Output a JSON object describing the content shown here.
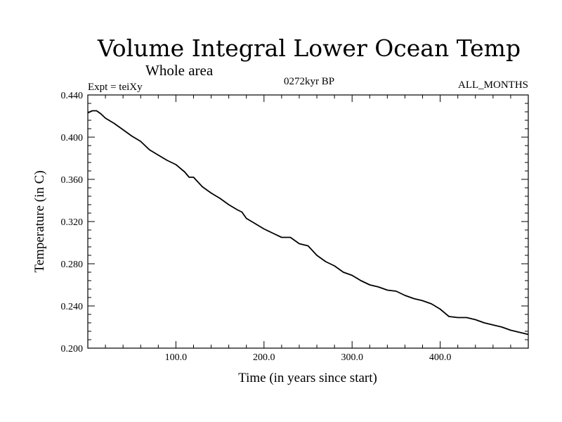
{
  "chart_data": {
    "type": "line",
    "title": "Volume Integral Lower Ocean Temp",
    "subtitle": "Whole area",
    "left_label": "Expt = teiXy",
    "center_label": "0272kyr BP",
    "right_label": "ALL_MONTHS",
    "xlabel": "Time (in years since start)",
    "ylabel": "Temperature (in C)",
    "xlim": [
      0,
      500
    ],
    "ylim": [
      0.2,
      0.44
    ],
    "x_ticks": [
      {
        "value": 100,
        "label": "100.0"
      },
      {
        "value": 200,
        "label": "200.0"
      },
      {
        "value": 300,
        "label": "300.0"
      },
      {
        "value": 400,
        "label": "400.0"
      }
    ],
    "y_ticks": [
      {
        "value": 0.2,
        "label": "0.200"
      },
      {
        "value": 0.24,
        "label": "0.240"
      },
      {
        "value": 0.28,
        "label": "0.280"
      },
      {
        "value": 0.32,
        "label": "0.320"
      },
      {
        "value": 0.36,
        "label": "0.360"
      },
      {
        "value": 0.4,
        "label": "0.400"
      },
      {
        "value": 0.44,
        "label": "0.440"
      }
    ],
    "grid": false,
    "series": [
      {
        "x": [
          0,
          5,
          10,
          15,
          20,
          30,
          40,
          50,
          60,
          70,
          80,
          90,
          100,
          110,
          115,
          120,
          130,
          140,
          150,
          160,
          170,
          175,
          180,
          190,
          200,
          210,
          220,
          230,
          240,
          250,
          260,
          270,
          280,
          290,
          300,
          310,
          320,
          330,
          340,
          350,
          360,
          370,
          380,
          390,
          400,
          410,
          420,
          430,
          440,
          450,
          460,
          470,
          480,
          490,
          500
        ],
        "y": [
          0.423,
          0.425,
          0.425,
          0.422,
          0.418,
          0.413,
          0.407,
          0.401,
          0.396,
          0.388,
          0.383,
          0.378,
          0.374,
          0.367,
          0.362,
          0.362,
          0.353,
          0.347,
          0.342,
          0.336,
          0.331,
          0.329,
          0.323,
          0.318,
          0.313,
          0.309,
          0.305,
          0.305,
          0.299,
          0.297,
          0.288,
          0.282,
          0.278,
          0.272,
          0.269,
          0.264,
          0.26,
          0.258,
          0.255,
          0.254,
          0.25,
          0.247,
          0.245,
          0.242,
          0.237,
          0.23,
          0.229,
          0.229,
          0.227,
          0.224,
          0.222,
          0.22,
          0.217,
          0.215,
          0.213
        ]
      }
    ]
  }
}
